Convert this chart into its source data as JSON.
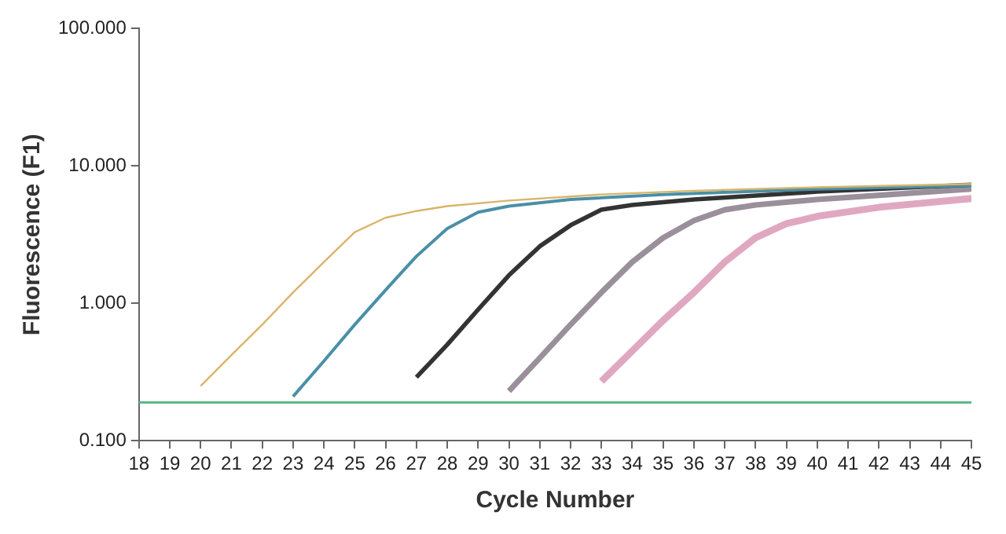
{
  "chart_data": {
    "type": "line",
    "xlabel": "Cycle Number",
    "ylabel": "Fluorescence (F1)",
    "log": "y",
    "grid": false,
    "legend": false,
    "marker": "none",
    "line_style": "solid",
    "xlim": [
      18,
      45
    ],
    "xticks": [
      18,
      19,
      20,
      21,
      22,
      23,
      24,
      25,
      26,
      27,
      28,
      29,
      30,
      31,
      32,
      33,
      34,
      35,
      36,
      37,
      38,
      39,
      40,
      41,
      42,
      43,
      44,
      45
    ],
    "ylim": [
      0.1,
      100
    ],
    "yticks": [
      {
        "value": 0.1,
        "label": "0.100"
      },
      {
        "value": 1,
        "label": "1.000"
      },
      {
        "value": 10,
        "label": "10.000"
      },
      {
        "value": 100,
        "label": "100.000"
      }
    ],
    "series": [
      {
        "color": "#d9b56a",
        "x": [
          20,
          21,
          22,
          23,
          24,
          25,
          26,
          27,
          28,
          30,
          33,
          36,
          40,
          45
        ],
        "values": [
          0.25,
          0.42,
          0.7,
          1.2,
          2.0,
          3.3,
          4.2,
          4.7,
          5.1,
          5.6,
          6.2,
          6.6,
          7.0,
          7.4
        ]
      },
      {
        "color": "#4a8fa8",
        "x": [
          23,
          24,
          25,
          26,
          27,
          28,
          29,
          30,
          32,
          35,
          40,
          45
        ],
        "values": [
          0.21,
          0.38,
          0.7,
          1.25,
          2.2,
          3.5,
          4.6,
          5.1,
          5.7,
          6.2,
          6.8,
          7.2
        ]
      },
      {
        "color": "#333333",
        "x": [
          27,
          28,
          29,
          30,
          31,
          32,
          33,
          34,
          36,
          40,
          45
        ],
        "values": [
          0.29,
          0.5,
          0.9,
          1.6,
          2.6,
          3.7,
          4.8,
          5.2,
          5.7,
          6.5,
          7.3
        ]
      },
      {
        "color": "#9a8f9a",
        "x": [
          30,
          31,
          32,
          33,
          34,
          35,
          36,
          37,
          38,
          40,
          45
        ],
        "values": [
          0.23,
          0.4,
          0.7,
          1.2,
          2.0,
          3.0,
          4.0,
          4.8,
          5.2,
          5.7,
          6.8
        ]
      },
      {
        "color": "#e0a8c0",
        "x": [
          33,
          34,
          35,
          36,
          37,
          38,
          39,
          40,
          42,
          45
        ],
        "values": [
          0.27,
          0.45,
          0.75,
          1.2,
          2.0,
          3.0,
          3.8,
          4.3,
          5.0,
          5.8
        ]
      }
    ],
    "ref_lines": [
      {
        "axis": "y",
        "value": 0.19,
        "color": "#5db88a"
      }
    ]
  }
}
